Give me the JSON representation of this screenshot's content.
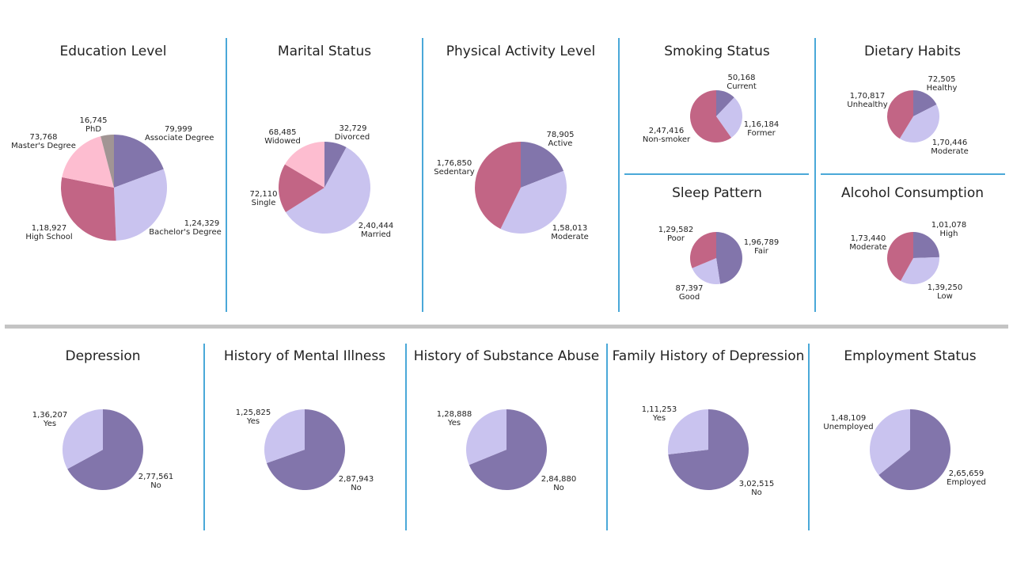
{
  "colors": [
    "#8275ab",
    "#c9c3ef",
    "#c26585",
    "#fdbdd0",
    "#a19594"
  ],
  "charts": [
    {
      "id": "education",
      "title": "Education Level",
      "categories": [
        "Associate Degree",
        "Bachelor's Degree",
        "High School",
        "Master's Degree",
        "PhD"
      ],
      "values": [
        79999,
        124329,
        118927,
        73768,
        16745
      ],
      "value_labels": [
        "79,999",
        "1,24,329",
        "1,18,927",
        "73,768",
        "16,745"
      ]
    },
    {
      "id": "marital",
      "title": "Marital Status",
      "categories": [
        "Divorced",
        "Married",
        "Single",
        "Widowed"
      ],
      "values": [
        32729,
        240444,
        72110,
        68485
      ],
      "value_labels": [
        "32,729",
        "2,40,444",
        "72,110",
        "68,485"
      ]
    },
    {
      "id": "activity",
      "title": "Physical Activity Level",
      "categories": [
        "Active",
        "Moderate",
        "Sedentary"
      ],
      "values": [
        78905,
        158013,
        176850
      ],
      "value_labels": [
        "78,905",
        "1,58,013",
        "1,76,850"
      ]
    },
    {
      "id": "smoking",
      "title": "Smoking Status",
      "categories": [
        "Current",
        "Former",
        "Non-smoker"
      ],
      "values": [
        50168,
        116184,
        247416
      ],
      "value_labels": [
        "50,168",
        "1,16,184",
        "2,47,416"
      ]
    },
    {
      "id": "diet",
      "title": "Dietary Habits",
      "categories": [
        "Healthy",
        "Moderate",
        "Unhealthy"
      ],
      "values": [
        72505,
        170446,
        170817
      ],
      "value_labels": [
        "72,505",
        "1,70,446",
        "1,70,817"
      ]
    },
    {
      "id": "sleep",
      "title": "Sleep Pattern",
      "categories": [
        "Fair",
        "Good",
        "Poor"
      ],
      "values": [
        196789,
        87397,
        129582
      ],
      "value_labels": [
        "1,96,789",
        "87,397",
        "1,29,582"
      ]
    },
    {
      "id": "alcohol",
      "title": "Alcohol Consumption",
      "categories": [
        "High",
        "Low",
        "Moderate"
      ],
      "values": [
        101078,
        139250,
        173440
      ],
      "value_labels": [
        "1,01,078",
        "1,39,250",
        "1,73,440"
      ]
    },
    {
      "id": "depression",
      "title": "Depression",
      "categories": [
        "No",
        "Yes"
      ],
      "values": [
        277561,
        136207
      ],
      "value_labels": [
        "2,77,561",
        "1,36,207"
      ]
    },
    {
      "id": "mental",
      "title": "History of Mental Illness",
      "categories": [
        "No",
        "Yes"
      ],
      "values": [
        287943,
        125825
      ],
      "value_labels": [
        "2,87,943",
        "1,25,825"
      ]
    },
    {
      "id": "substance",
      "title": "History of Substance Abuse",
      "categories": [
        "No",
        "Yes"
      ],
      "values": [
        284880,
        128888
      ],
      "value_labels": [
        "2,84,880",
        "1,28,888"
      ]
    },
    {
      "id": "family",
      "title": "Family History of Depression",
      "categories": [
        "No",
        "Yes"
      ],
      "values": [
        302515,
        111253
      ],
      "value_labels": [
        "3,02,515",
        "1,11,253"
      ]
    },
    {
      "id": "employment",
      "title": "Employment Status",
      "categories": [
        "Employed",
        "Unemployed"
      ],
      "values": [
        265659,
        148109
      ],
      "value_labels": [
        "2,65,659",
        "1,48,109"
      ]
    }
  ],
  "chart_data": [
    {
      "type": "pie",
      "title": "Education Level",
      "categories": [
        "Associate Degree",
        "Bachelor's Degree",
        "High School",
        "Master's Degree",
        "PhD"
      ],
      "values": [
        79999,
        124329,
        118927,
        73768,
        16745
      ]
    },
    {
      "type": "pie",
      "title": "Marital Status",
      "categories": [
        "Divorced",
        "Married",
        "Single",
        "Widowed"
      ],
      "values": [
        32729,
        240444,
        72110,
        68485
      ]
    },
    {
      "type": "pie",
      "title": "Physical Activity Level",
      "categories": [
        "Active",
        "Moderate",
        "Sedentary"
      ],
      "values": [
        78905,
        158013,
        176850
      ]
    },
    {
      "type": "pie",
      "title": "Smoking Status",
      "categories": [
        "Current",
        "Former",
        "Non-smoker"
      ],
      "values": [
        50168,
        116184,
        247416
      ]
    },
    {
      "type": "pie",
      "title": "Dietary Habits",
      "categories": [
        "Healthy",
        "Moderate",
        "Unhealthy"
      ],
      "values": [
        72505,
        170446,
        170817
      ]
    },
    {
      "type": "pie",
      "title": "Sleep Pattern",
      "categories": [
        "Fair",
        "Good",
        "Poor"
      ],
      "values": [
        196789,
        87397,
        129582
      ]
    },
    {
      "type": "pie",
      "title": "Alcohol Consumption",
      "categories": [
        "High",
        "Low",
        "Moderate"
      ],
      "values": [
        101078,
        139250,
        173440
      ]
    },
    {
      "type": "pie",
      "title": "Depression",
      "categories": [
        "No",
        "Yes"
      ],
      "values": [
        277561,
        136207
      ]
    },
    {
      "type": "pie",
      "title": "History of Mental Illness",
      "categories": [
        "No",
        "Yes"
      ],
      "values": [
        287943,
        125825
      ]
    },
    {
      "type": "pie",
      "title": "History of Substance Abuse",
      "categories": [
        "No",
        "Yes"
      ],
      "values": [
        284880,
        128888
      ]
    },
    {
      "type": "pie",
      "title": "Family History of Depression",
      "categories": [
        "No",
        "Yes"
      ],
      "values": [
        302515,
        111253
      ]
    },
    {
      "type": "pie",
      "title": "Employment Status",
      "categories": [
        "Employed",
        "Unemployed"
      ],
      "values": [
        265659,
        148109
      ]
    }
  ]
}
